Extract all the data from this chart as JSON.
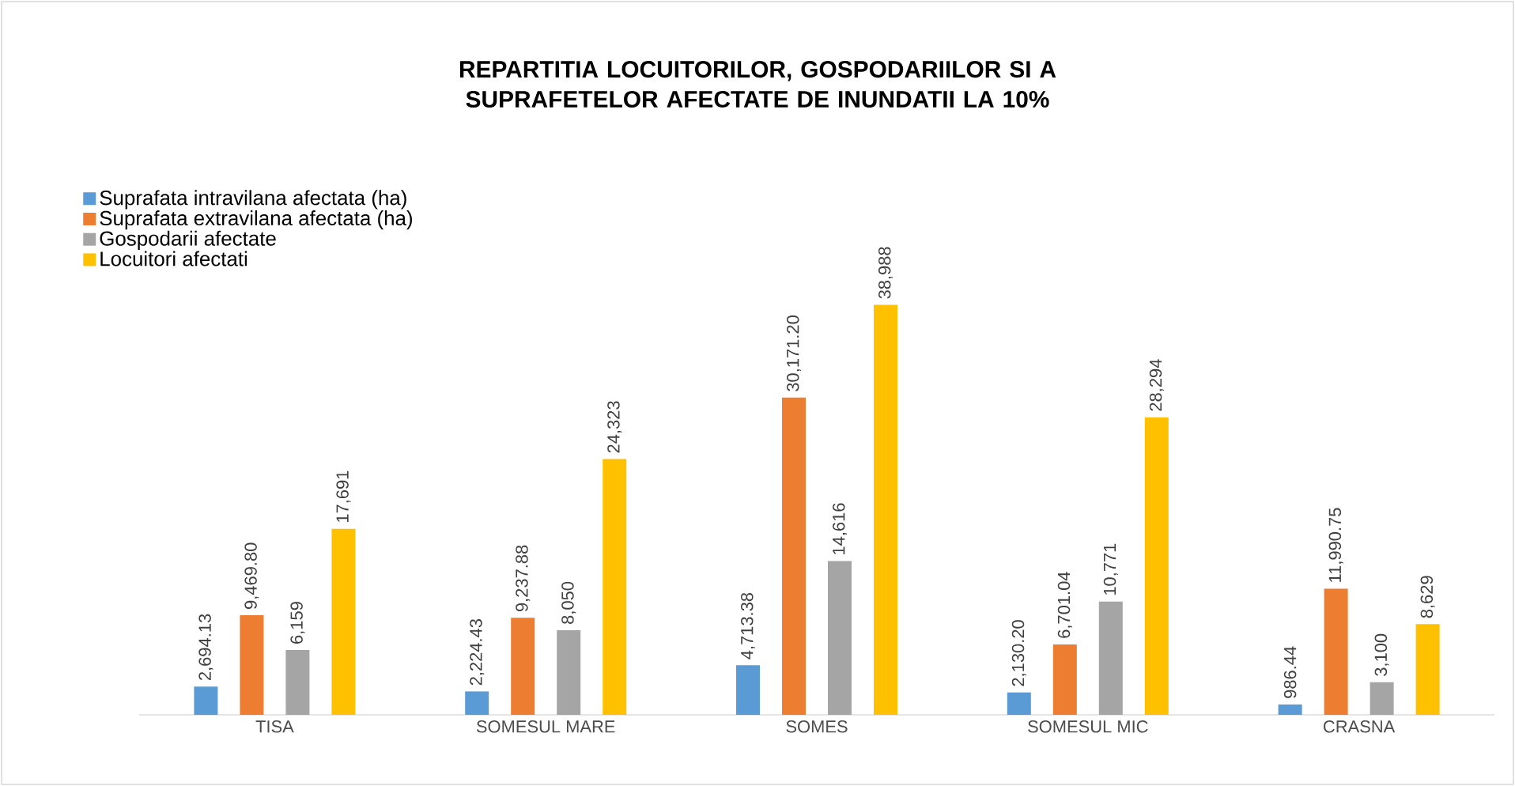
{
  "chart_data": {
    "type": "bar",
    "title": "REPARTITIA LOCUITORILOR, GOSPODARIILOR SI A SUPRAFETELOR AFECTATE DE INUNDATII LA 10%",
    "categories": [
      "TISA",
      "SOMESUL MARE",
      "SOMES",
      "SOMESUL MIC",
      "CRASNA"
    ],
    "legend": "top left",
    "tick_labels": "x",
    "series": [
      {
        "name": "Suprafata intravilana afectata (ha)",
        "color": "#5b9bd5",
        "values": [
          2694.13,
          2224.43,
          4713.38,
          2130.2,
          986.44
        ],
        "value_labels": [
          "2,694.13",
          "2,224.43",
          "4,713.38",
          "2,130.20",
          "986.44"
        ]
      },
      {
        "name": "Suprafata extravilana afectata (ha)",
        "color": "#ed7d31",
        "values": [
          9469.8,
          9237.88,
          30171.2,
          6701.04,
          11990.75
        ],
        "value_labels": [
          "9,469.80",
          "9,237.88",
          "30,171.20",
          "6,701.04",
          "11,990.75"
        ]
      },
      {
        "name": "Gospodarii afectate",
        "color": "#a5a5a5",
        "values": [
          6159,
          8050,
          14616,
          10771,
          3100
        ],
        "value_labels": [
          "6,159",
          "8,050",
          "14,616",
          "10,771",
          "3,100"
        ]
      },
      {
        "name": "Locuitori afectati",
        "color": "#ffc000",
        "values": [
          17691,
          24323,
          38988,
          28294,
          8629
        ],
        "value_labels": [
          "17,691",
          "24,323",
          "38,988",
          "28,294",
          "8,629"
        ]
      }
    ]
  }
}
